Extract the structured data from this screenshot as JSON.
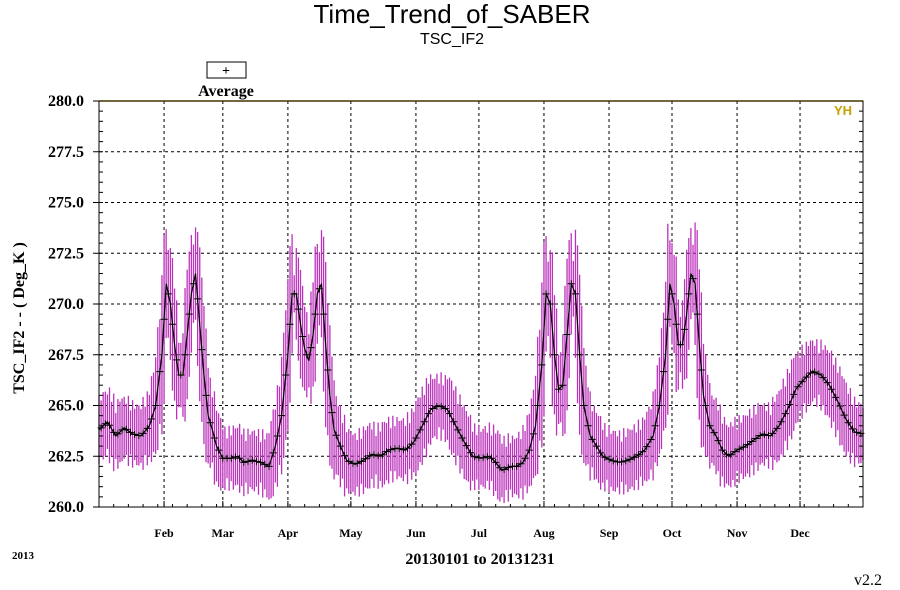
{
  "chart_data": {
    "type": "line",
    "title": "Time_Trend_of_SABER",
    "subtitle": "TSC_IF2",
    "ylabel": "TSC_IF2  -  - ( Deg_K )",
    "xlabel": "20130101 to 20131231",
    "year_label": "2013",
    "version": "v2.2",
    "legend": {
      "label": "Average",
      "symbol": "+",
      "placement": "top-left"
    },
    "limit_line": {
      "label": "YH",
      "value": 280.0,
      "color": "#c8a000"
    },
    "ylim": [
      260.0,
      280.0
    ],
    "y_ticks": [
      "260.0",
      "262.5",
      "265.0",
      "267.5",
      "270.0",
      "272.5",
      "275.0",
      "277.5",
      "280.0"
    ],
    "x_range_days": [
      1,
      365
    ],
    "months": [
      {
        "label": "Feb",
        "day": 32
      },
      {
        "label": "Mar",
        "day": 60
      },
      {
        "label": "Apr",
        "day": 91
      },
      {
        "label": "May",
        "day": 121
      },
      {
        "label": "Jun",
        "day": 152
      },
      {
        "label": "Jul",
        "day": 182
      },
      {
        "label": "Aug",
        "day": 213
      },
      {
        "label": "Sep",
        "day": 244
      },
      {
        "label": "Oct",
        "day": 274
      },
      {
        "label": "Nov",
        "day": 305
      },
      {
        "label": "Dec",
        "day": 335
      }
    ],
    "grid": true,
    "series": [
      {
        "name": "Average",
        "color": "#000000",
        "range_color": "#bb33bb",
        "points": [
          {
            "day": 1,
            "avg": 263.8
          },
          {
            "day": 5,
            "avg": 264.2
          },
          {
            "day": 9,
            "avg": 263.5
          },
          {
            "day": 13,
            "avg": 263.9
          },
          {
            "day": 17,
            "avg": 263.6
          },
          {
            "day": 21,
            "avg": 263.5
          },
          {
            "day": 25,
            "avg": 264.0
          },
          {
            "day": 28,
            "avg": 265.0
          },
          {
            "day": 31,
            "avg": 267.5
          },
          {
            "day": 33,
            "avg": 271.0
          },
          {
            "day": 35,
            "avg": 270.0
          },
          {
            "day": 37,
            "avg": 268.0
          },
          {
            "day": 39,
            "avg": 266.5
          },
          {
            "day": 41,
            "avg": 266.5
          },
          {
            "day": 43,
            "avg": 268.5
          },
          {
            "day": 45,
            "avg": 270.5
          },
          {
            "day": 47,
            "avg": 271.5
          },
          {
            "day": 49,
            "avg": 269.0
          },
          {
            "day": 51,
            "avg": 266.5
          },
          {
            "day": 53,
            "avg": 264.5
          },
          {
            "day": 55,
            "avg": 263.8
          },
          {
            "day": 57,
            "avg": 263.0
          },
          {
            "day": 60,
            "avg": 262.4
          },
          {
            "day": 64,
            "avg": 262.4
          },
          {
            "day": 67,
            "avg": 262.5
          },
          {
            "day": 70,
            "avg": 262.2
          },
          {
            "day": 74,
            "avg": 262.3
          },
          {
            "day": 78,
            "avg": 262.2
          },
          {
            "day": 82,
            "avg": 262.0
          },
          {
            "day": 85,
            "avg": 263.0
          },
          {
            "day": 88,
            "avg": 264.5
          },
          {
            "day": 91,
            "avg": 267.5
          },
          {
            "day": 93,
            "avg": 270.5
          },
          {
            "day": 95,
            "avg": 270.5
          },
          {
            "day": 97,
            "avg": 269.0
          },
          {
            "day": 99,
            "avg": 267.8
          },
          {
            "day": 101,
            "avg": 267.2
          },
          {
            "day": 103,
            "avg": 268.5
          },
          {
            "day": 105,
            "avg": 270.5
          },
          {
            "day": 107,
            "avg": 271.0
          },
          {
            "day": 109,
            "avg": 268.0
          },
          {
            "day": 111,
            "avg": 265.5
          },
          {
            "day": 113,
            "avg": 263.8
          },
          {
            "day": 116,
            "avg": 263.0
          },
          {
            "day": 119,
            "avg": 262.3
          },
          {
            "day": 123,
            "avg": 262.1
          },
          {
            "day": 127,
            "avg": 262.3
          },
          {
            "day": 131,
            "avg": 262.6
          },
          {
            "day": 135,
            "avg": 262.5
          },
          {
            "day": 139,
            "avg": 262.8
          },
          {
            "day": 143,
            "avg": 262.9
          },
          {
            "day": 147,
            "avg": 262.8
          },
          {
            "day": 151,
            "avg": 263.2
          },
          {
            "day": 155,
            "avg": 264.0
          },
          {
            "day": 159,
            "avg": 264.8
          },
          {
            "day": 163,
            "avg": 265.0
          },
          {
            "day": 167,
            "avg": 264.8
          },
          {
            "day": 171,
            "avg": 264.0
          },
          {
            "day": 175,
            "avg": 263.2
          },
          {
            "day": 179,
            "avg": 262.5
          },
          {
            "day": 183,
            "avg": 262.4
          },
          {
            "day": 187,
            "avg": 262.5
          },
          {
            "day": 190,
            "avg": 262.2
          },
          {
            "day": 193,
            "avg": 261.8
          },
          {
            "day": 197,
            "avg": 262.0
          },
          {
            "day": 200,
            "avg": 262.0
          },
          {
            "day": 203,
            "avg": 262.2
          },
          {
            "day": 206,
            "avg": 262.8
          },
          {
            "day": 209,
            "avg": 264.0
          },
          {
            "day": 212,
            "avg": 267.0
          },
          {
            "day": 214,
            "avg": 270.5
          },
          {
            "day": 216,
            "avg": 270.0
          },
          {
            "day": 218,
            "avg": 267.5
          },
          {
            "day": 220,
            "avg": 265.8
          },
          {
            "day": 222,
            "avg": 266.0
          },
          {
            "day": 224,
            "avg": 268.5
          },
          {
            "day": 226,
            "avg": 271.0
          },
          {
            "day": 228,
            "avg": 270.5
          },
          {
            "day": 230,
            "avg": 267.5
          },
          {
            "day": 232,
            "avg": 265.0
          },
          {
            "day": 235,
            "avg": 263.5
          },
          {
            "day": 238,
            "avg": 263.0
          },
          {
            "day": 241,
            "avg": 262.5
          },
          {
            "day": 245,
            "avg": 262.3
          },
          {
            "day": 249,
            "avg": 262.2
          },
          {
            "day": 253,
            "avg": 262.3
          },
          {
            "day": 257,
            "avg": 262.5
          },
          {
            "day": 261,
            "avg": 262.8
          },
          {
            "day": 265,
            "avg": 263.5
          },
          {
            "day": 268,
            "avg": 265.0
          },
          {
            "day": 271,
            "avg": 267.5
          },
          {
            "day": 273,
            "avg": 271.0
          },
          {
            "day": 275,
            "avg": 270.0
          },
          {
            "day": 277,
            "avg": 268.0
          },
          {
            "day": 279,
            "avg": 268.0
          },
          {
            "day": 281,
            "avg": 269.5
          },
          {
            "day": 283,
            "avg": 271.5
          },
          {
            "day": 285,
            "avg": 271.0
          },
          {
            "day": 287,
            "avg": 268.0
          },
          {
            "day": 289,
            "avg": 265.5
          },
          {
            "day": 292,
            "avg": 264.0
          },
          {
            "day": 295,
            "avg": 263.5
          },
          {
            "day": 298,
            "avg": 262.8
          },
          {
            "day": 301,
            "avg": 262.5
          },
          {
            "day": 305,
            "avg": 262.8
          },
          {
            "day": 309,
            "avg": 263.0
          },
          {
            "day": 313,
            "avg": 263.3
          },
          {
            "day": 317,
            "avg": 263.6
          },
          {
            "day": 321,
            "avg": 263.5
          },
          {
            "day": 325,
            "avg": 264.0
          },
          {
            "day": 329,
            "avg": 264.8
          },
          {
            "day": 333,
            "avg": 265.8
          },
          {
            "day": 337,
            "avg": 266.3
          },
          {
            "day": 341,
            "avg": 266.7
          },
          {
            "day": 345,
            "avg": 266.5
          },
          {
            "day": 349,
            "avg": 266.0
          },
          {
            "day": 353,
            "avg": 265.2
          },
          {
            "day": 357,
            "avg": 264.3
          },
          {
            "day": 361,
            "avg": 263.7
          },
          {
            "day": 365,
            "avg": 263.6
          }
        ]
      }
    ]
  }
}
